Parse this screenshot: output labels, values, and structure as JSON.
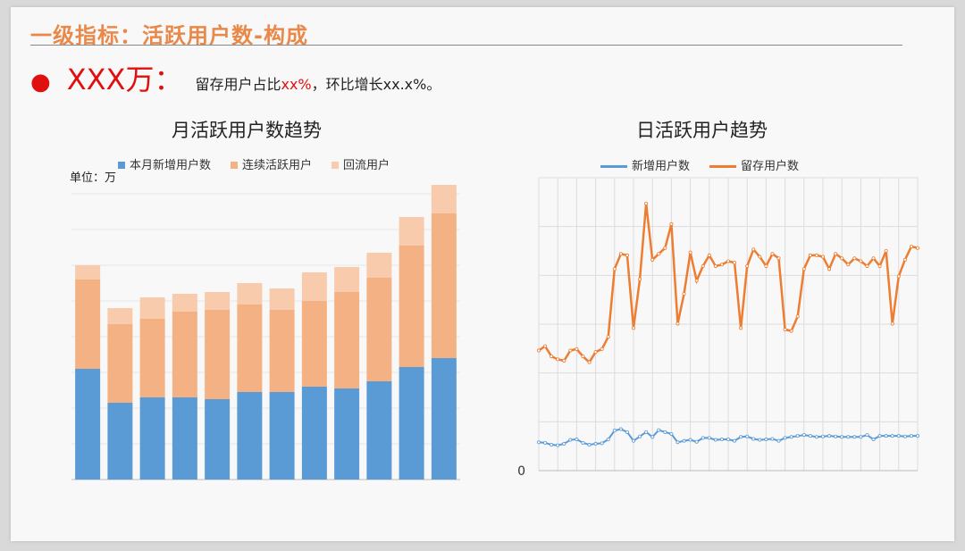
{
  "header": {
    "title": "一级指标：活跃用户数-构成"
  },
  "summary": {
    "value": "XXX万：",
    "text_a": "留存用户占比",
    "pct": "xx%",
    "text_b": "，环比增长xx.x%。"
  },
  "chart_data": [
    {
      "type": "bar",
      "stacked": true,
      "title": "月活跃用户数趋势",
      "unit_label": "单位：万",
      "legend_position": "top",
      "grid": true,
      "ylim": [
        0,
        8.5
      ],
      "series": [
        {
          "name": "本月新增用户数",
          "color": "#5b9bd5",
          "values": [
            3.1,
            2.15,
            2.3,
            2.3,
            2.25,
            2.45,
            2.45,
            2.6,
            2.55,
            2.75,
            3.15,
            3.4
          ]
        },
        {
          "name": "连续活跃用户",
          "color": "#f4b183",
          "values": [
            2.5,
            2.2,
            2.2,
            2.4,
            2.5,
            2.45,
            2.3,
            2.4,
            2.7,
            2.9,
            3.4,
            4.05
          ]
        },
        {
          "name": "回流用户",
          "color": "#f8cbad",
          "values": [
            0.4,
            0.45,
            0.6,
            0.5,
            0.5,
            0.6,
            0.6,
            0.8,
            0.7,
            0.7,
            0.8,
            0.8
          ]
        }
      ]
    },
    {
      "type": "line",
      "title": "日活跃用户趋势",
      "legend_position": "top",
      "grid": true,
      "ylim": [
        0,
        6
      ],
      "y_tick_labels": [
        "0"
      ],
      "series": [
        {
          "name": "新增用户数",
          "color": "#5b9bd5",
          "values": [
            0.58,
            0.57,
            0.53,
            0.52,
            0.55,
            0.63,
            0.64,
            0.57,
            0.53,
            0.55,
            0.56,
            0.64,
            0.82,
            0.85,
            0.79,
            0.61,
            0.7,
            0.79,
            0.69,
            0.83,
            0.79,
            0.75,
            0.58,
            0.61,
            0.63,
            0.59,
            0.67,
            0.67,
            0.63,
            0.64,
            0.64,
            0.61,
            0.69,
            0.7,
            0.65,
            0.63,
            0.64,
            0.65,
            0.61,
            0.67,
            0.69,
            0.71,
            0.73,
            0.71,
            0.69,
            0.7,
            0.71,
            0.7,
            0.69,
            0.69,
            0.69,
            0.69,
            0.73,
            0.64,
            0.71,
            0.71,
            0.71,
            0.71,
            0.7,
            0.71,
            0.71
          ]
        },
        {
          "name": "留存用户数",
          "color": "#ed7d31",
          "values": [
            2.46,
            2.55,
            2.34,
            2.28,
            2.25,
            2.46,
            2.49,
            2.34,
            2.22,
            2.43,
            2.49,
            2.74,
            4.13,
            4.44,
            4.41,
            2.92,
            3.92,
            5.47,
            4.32,
            4.44,
            4.56,
            5.05,
            3.01,
            3.62,
            4.47,
            3.89,
            4.19,
            4.41,
            4.19,
            4.22,
            4.29,
            4.26,
            2.92,
            4.19,
            4.53,
            4.38,
            4.19,
            4.44,
            4.35,
            2.89,
            2.86,
            3.16,
            4.13,
            4.41,
            4.41,
            4.38,
            4.13,
            4.44,
            4.35,
            4.22,
            4.35,
            4.29,
            4.19,
            4.35,
            4.19,
            4.5,
            3.01,
            3.98,
            4.32,
            4.59,
            4.56
          ]
        }
      ]
    }
  ]
}
